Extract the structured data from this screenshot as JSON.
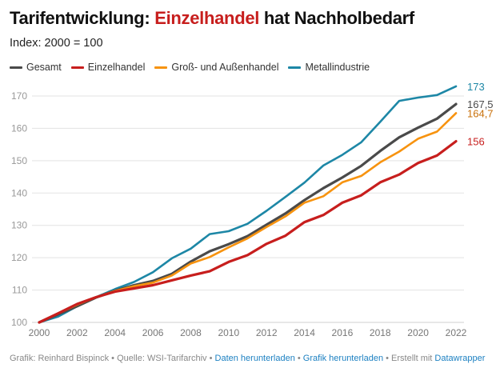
{
  "header": {
    "title_pre": "Tarifentwicklung: ",
    "title_highlight": "Einzelhandel",
    "title_post": " hat Nachholbedarf",
    "subtitle": "Index: 2000 = 100"
  },
  "chart_data": {
    "type": "line",
    "title": "Tarifentwicklung: Einzelhandel hat Nachholbedarf",
    "subtitle": "Index: 2000 = 100",
    "xlabel": "",
    "ylabel": "",
    "x": [
      2000,
      2001,
      2002,
      2003,
      2004,
      2005,
      2006,
      2007,
      2008,
      2009,
      2010,
      2011,
      2012,
      2013,
      2014,
      2015,
      2016,
      2017,
      2018,
      2019,
      2020,
      2021,
      2022
    ],
    "xticks": [
      "2000",
      "2002",
      "2004",
      "2006",
      "2008",
      "2010",
      "2012",
      "2014",
      "2016",
      "2018",
      "2020",
      "2022"
    ],
    "yticks": [
      "100",
      "110",
      "120",
      "130",
      "140",
      "150",
      "160",
      "170"
    ],
    "ylim": [
      100,
      173
    ],
    "grid": true,
    "legend": "top-left",
    "series": [
      {
        "name": "Metallindustrie",
        "color": "#1d87a6",
        "end_label": "173",
        "values": [
          100,
          101.8,
          105,
          107.8,
          110.3,
          112.5,
          115.5,
          119.8,
          122.8,
          127.3,
          128.2,
          130.5,
          134.5,
          138.8,
          143.2,
          148.5,
          151.8,
          155.7,
          162,
          168.5,
          169.5,
          170.3,
          173
        ]
      },
      {
        "name": "Gesamt",
        "color": "#4a4a4a",
        "end_label": "167,5",
        "values": [
          100,
          102.5,
          105,
          107.7,
          109.8,
          111.5,
          112.8,
          115,
          118.8,
          122,
          124.2,
          126.7,
          130.2,
          133.7,
          137.8,
          141.5,
          144.8,
          148.4,
          153,
          157.2,
          160.2,
          163,
          167.5
        ]
      },
      {
        "name": "Groß- und Außenhandel",
        "color": "#f7930f",
        "end_label": "164,7",
        "values": [
          100,
          102.8,
          105.5,
          107.8,
          109.7,
          111.2,
          112.3,
          114.5,
          118.2,
          120.2,
          123.2,
          126,
          129.5,
          132.8,
          137,
          139,
          143.3,
          145.3,
          149.5,
          152.8,
          156.8,
          159,
          164.7
        ]
      },
      {
        "name": "Einzelhandel",
        "color": "#c71e1d",
        "end_label": "156",
        "values": [
          100,
          102.8,
          105.7,
          107.8,
          109.5,
          110.5,
          111.5,
          113,
          114.5,
          115.8,
          118.7,
          120.8,
          124.3,
          126.8,
          131,
          133.2,
          137,
          139.3,
          143.3,
          145.7,
          149.3,
          151.6,
          156
        ]
      }
    ]
  },
  "legend_order": [
    {
      "name": "Gesamt",
      "color": "#4a4a4a"
    },
    {
      "name": "Einzelhandel",
      "color": "#c71e1d"
    },
    {
      "name": "Groß- und Außenhandel",
      "color": "#f7930f"
    },
    {
      "name": "Metallindustrie",
      "color": "#1d87a6"
    }
  ],
  "footer": {
    "credit": "Grafik: Reinhard Bispinck • Quelle: WSI-Tarifarchiv • ",
    "data_link": "Daten herunterladen",
    "sep1": " • ",
    "image_link": "Grafik herunterladen",
    "sep2": " • Erstellt mit ",
    "dw_link": "Datawrapper"
  }
}
